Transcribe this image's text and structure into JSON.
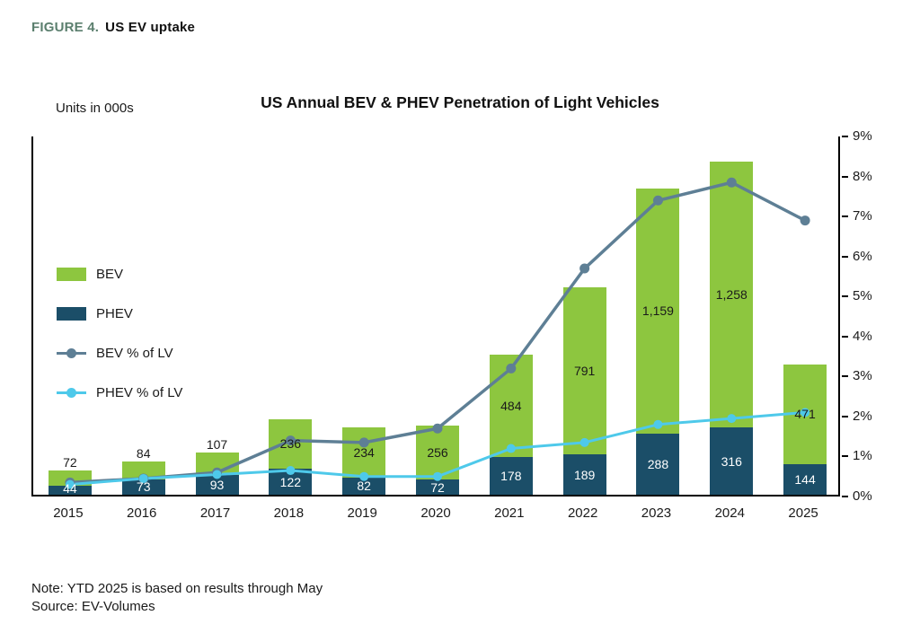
{
  "figure": {
    "label": "FIGURE 4.",
    "title": "US EV uptake"
  },
  "chart": {
    "title": "US Annual BEV & PHEV Penetration of Light Vehicles",
    "units_label": "Units in 000s",
    "note": "Note: YTD 2025 is based on results through May",
    "source": "Source: EV-Volumes"
  },
  "chart_data": {
    "type": "combo-stacked-bar-line",
    "categories": [
      "2015",
      "2016",
      "2017",
      "2018",
      "2019",
      "2020",
      "2021",
      "2022",
      "2023",
      "2024",
      "2025"
    ],
    "units_axis_max": 1700,
    "bar_series": [
      {
        "name": "BEV",
        "color": "#8dc63f",
        "values": [
          72,
          84,
          107,
          236,
          234,
          256,
          484,
          791,
          1159,
          1258,
          471
        ]
      },
      {
        "name": "PHEV",
        "color": "#1b4e68",
        "values": [
          44,
          73,
          93,
          122,
          82,
          72,
          178,
          189,
          288,
          316,
          144
        ]
      }
    ],
    "line_series": [
      {
        "name": "BEV % of LV",
        "color": "#5e7f95",
        "stroke_width": 3.5,
        "marker_r": 5.5,
        "values": [
          0.35,
          0.45,
          0.6,
          1.4,
          1.35,
          1.7,
          3.2,
          5.7,
          7.4,
          7.85,
          6.9
        ]
      },
      {
        "name": "PHEV % of LV",
        "color": "#4ec9ea",
        "stroke_width": 3,
        "marker_r": 5,
        "values": [
          0.3,
          0.45,
          0.55,
          0.65,
          0.5,
          0.5,
          1.2,
          1.35,
          1.8,
          1.95,
          2.1
        ]
      }
    ],
    "right_axis": {
      "min": 0,
      "max": 9,
      "ticks": [
        "0%",
        "1%",
        "2%",
        "3%",
        "4%",
        "5%",
        "6%",
        "7%",
        "8%",
        "9%"
      ]
    },
    "legend_position": "inside-left",
    "grid": "off"
  }
}
